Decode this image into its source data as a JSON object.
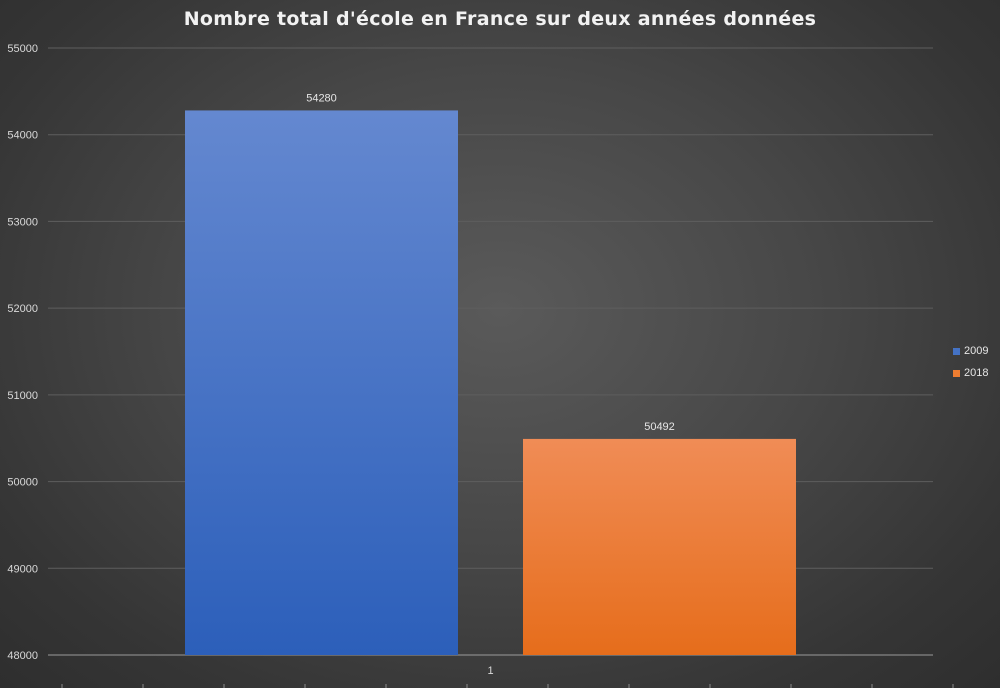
{
  "chart_data": {
    "type": "bar",
    "title": "Nombre total d'école en France sur deux années données",
    "categories": [
      "1"
    ],
    "series": [
      {
        "name": "2009",
        "values": [
          54280
        ],
        "color": "#4472C4"
      },
      {
        "name": "2018",
        "values": [
          50492
        ],
        "color": "#ED7D31"
      }
    ],
    "data_labels": [
      "54280",
      "50492"
    ],
    "ylim": [
      48000,
      55000
    ],
    "yticks": [
      "48000",
      "49000",
      "50000",
      "51000",
      "52000",
      "53000",
      "54000",
      "55000"
    ],
    "xlabel": "",
    "ylabel": "",
    "grid": true,
    "legend_position": "right"
  }
}
